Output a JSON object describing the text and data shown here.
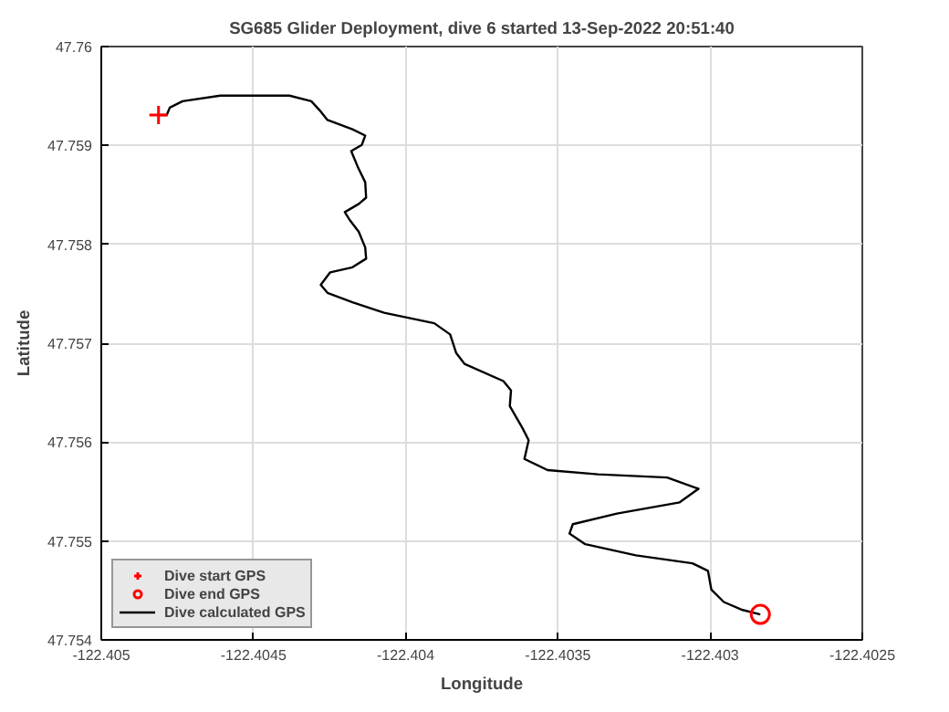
{
  "chart_data": {
    "type": "line",
    "title": "SG685 Glider Deployment, dive 6 started 13-Sep-2022 20:51:40",
    "xlabel": "Longitude",
    "ylabel": "Latitude",
    "xlim": [
      -122.405,
      -122.4025
    ],
    "ylim": [
      47.754,
      47.76
    ],
    "xticks": [
      -122.405,
      -122.4045,
      -122.404,
      -122.4035,
      -122.403,
      -122.4025
    ],
    "yticks": [
      47.754,
      47.755,
      47.756,
      47.757,
      47.758,
      47.759,
      47.76
    ],
    "grid": true,
    "legend": "bottom left",
    "series": [
      {
        "name": "Dive start GPS",
        "type": "scatter",
        "marker": "cross",
        "color": "#ff0000",
        "x": [
          -122.404812
        ],
        "values": [
          47.759308
        ]
      },
      {
        "name": "Dive end GPS",
        "type": "scatter",
        "marker": "circle",
        "color": "#ff0000",
        "x": [
          -122.402835
        ],
        "values": [
          47.754258
        ]
      },
      {
        "name": "Dive calculated GPS",
        "marker": "none",
        "color": "#000000",
        "x": [
          -122.404812,
          -122.404785,
          -122.404775,
          -122.404733,
          -122.404609,
          -122.404382,
          -122.40431,
          -122.404282,
          -122.404257,
          -122.404175,
          -122.404133,
          -122.404144,
          -122.404179,
          -122.404158,
          -122.404133,
          -122.40413,
          -122.404154,
          -122.4042,
          -122.404185,
          -122.404154,
          -122.404133,
          -122.40413,
          -122.404175,
          -122.404248,
          -122.404279,
          -122.404257,
          -122.404175,
          -122.404071,
          -122.403906,
          -122.403854,
          -122.403834,
          -122.403807,
          -122.403679,
          -122.403654,
          -122.403658,
          -122.403617,
          -122.403596,
          -122.40361,
          -122.403534,
          -122.403368,
          -122.403141,
          -122.403038,
          -122.4031,
          -122.403306,
          -122.403451,
          -122.403462,
          -122.40341,
          -122.403244,
          -122.403058,
          -122.403007,
          -122.402996,
          -122.402955,
          -122.402893,
          -122.402835
        ],
        "values": [
          47.759308,
          47.759308,
          47.759383,
          47.759447,
          47.759504,
          47.759504,
          47.759447,
          47.759353,
          47.759258,
          47.759164,
          47.7591,
          47.759006,
          47.758943,
          47.758787,
          47.758628,
          47.758472,
          47.758409,
          47.758326,
          47.758251,
          47.758126,
          47.757968,
          47.757855,
          47.757768,
          47.757717,
          47.757591,
          47.757509,
          47.757415,
          47.757308,
          47.757202,
          47.757089,
          47.7569,
          47.756792,
          47.756617,
          47.756523,
          47.756364,
          47.756145,
          47.756019,
          47.75583,
          47.755717,
          47.755674,
          47.755642,
          47.755528,
          47.755391,
          47.755277,
          47.75517,
          47.755075,
          47.754968,
          47.754855,
          47.754774,
          47.754698,
          47.754509,
          47.754383,
          47.754302,
          47.754258
        ]
      }
    ]
  }
}
